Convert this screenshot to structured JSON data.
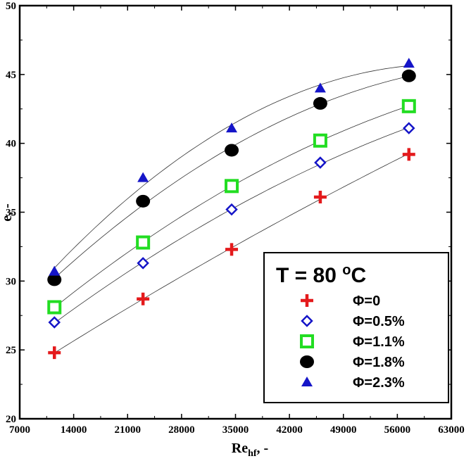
{
  "chart_data": {
    "type": "scatter",
    "xlabel_main": "Re",
    "xlabel_sub": "hf",
    "xlabel_suffix": ", -",
    "ylabel": "e, -",
    "xlim": [
      7000,
      63000
    ],
    "ylim": [
      20,
      50
    ],
    "x_ticks": [
      7000,
      14000,
      21000,
      28000,
      35000,
      42000,
      49000,
      56000,
      63000
    ],
    "x_tick_labels": [
      "7000",
      "14000",
      "21000",
      "28000",
      "35000",
      "42000",
      "49000",
      "56000",
      "63000"
    ],
    "y_ticks": [
      20,
      25,
      30,
      35,
      40,
      45,
      50
    ],
    "y_tick_labels": [
      "20",
      "25",
      "30",
      "35",
      "40",
      "45",
      "50"
    ],
    "legend_title": "T = 80 °C",
    "legend_title_parts": {
      "prefix": "T = 80 ",
      "degree": "o",
      "unit": "C"
    },
    "grid": false,
    "legend_position": "bottom-right",
    "fit_curves": true,
    "series": [
      {
        "name": "Φ=0",
        "marker": "plus",
        "color": "#e41a1c",
        "x": [
          11500,
          23000,
          34500,
          46000,
          57500
        ],
        "y": [
          24.8,
          28.7,
          32.3,
          36.1,
          39.2
        ]
      },
      {
        "name": "Φ=0.5%",
        "marker": "diamond",
        "color": "#1515c8",
        "x": [
          11500,
          23000,
          34500,
          46000,
          57500
        ],
        "y": [
          27.0,
          31.3,
          35.2,
          38.6,
          41.1
        ]
      },
      {
        "name": "Φ=1.1%",
        "marker": "square",
        "color": "#22dd22",
        "x": [
          11500,
          23000,
          34500,
          46000,
          57500
        ],
        "y": [
          28.1,
          32.8,
          36.9,
          40.2,
          42.7
        ]
      },
      {
        "name": "Φ=1.8%",
        "marker": "circle",
        "color": "#000000",
        "x": [
          11500,
          23000,
          34500,
          46000,
          57500
        ],
        "y": [
          30.1,
          35.8,
          39.5,
          42.9,
          44.9
        ]
      },
      {
        "name": "Φ=2.3%",
        "marker": "triangle",
        "color": "#1515c8",
        "x": [
          11500,
          23000,
          34500,
          46000,
          57500
        ],
        "y": [
          30.7,
          37.5,
          41.1,
          44.0,
          45.8
        ]
      }
    ]
  }
}
